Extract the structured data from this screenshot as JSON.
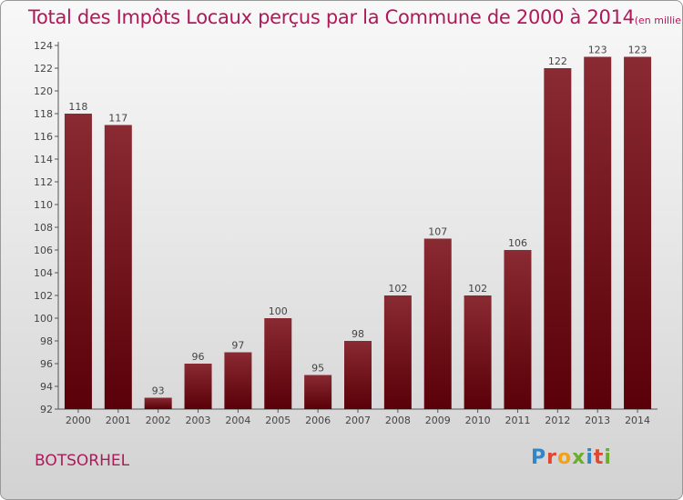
{
  "header": {
    "title": "Total des Impôts Locaux perçus par la Commune de 2000 à 2014",
    "subtitle": "(en milliers d'€)"
  },
  "footer": {
    "place": "BOTSORHEL",
    "logo_letters": [
      "P",
      "r",
      "o",
      "x",
      "i",
      "t",
      "i"
    ]
  },
  "colors": {
    "title": "#b0185a",
    "bar_dark": "#5a0008",
    "bar_light": "#8a2a32"
  },
  "chart_data": {
    "type": "bar",
    "title": "Total des Impôts Locaux perçus par la Commune de 2000 à 2014",
    "subtitle": "(en milliers d'€)",
    "categories": [
      "2000",
      "2001",
      "2002",
      "2003",
      "2004",
      "2005",
      "2006",
      "2007",
      "2008",
      "2009",
      "2010",
      "2011",
      "2012",
      "2013",
      "2014"
    ],
    "values": [
      118,
      117,
      93,
      96,
      97,
      100,
      95,
      98,
      102,
      107,
      102,
      106,
      122,
      123,
      123
    ],
    "ylim": [
      92,
      124
    ],
    "yticks": [
      92,
      94,
      96,
      98,
      100,
      102,
      104,
      106,
      108,
      110,
      112,
      114,
      116,
      118,
      120,
      122,
      124
    ],
    "grid": false,
    "legend": "none"
  }
}
